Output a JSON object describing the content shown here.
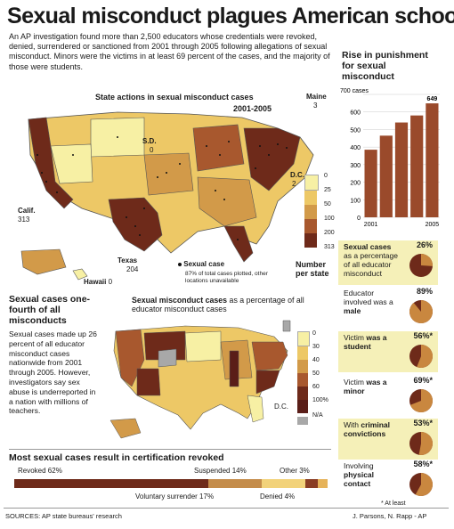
{
  "title": "Sexual misconduct plagues American schools",
  "intro": "An AP investigation found more than 2,500 educators whose credentials were revoked, denied, surrendered or sanctioned from 2001 through 2005 following allegations of sexual misconduct. Minors were the victims in at least 69 percent of the cases, and the majority of those were students.",
  "map1": {
    "title": "State actions in sexual misconduct cases",
    "years": "2001-2005",
    "labels": {
      "maine": "Maine",
      "maine_val": "3",
      "sd": "S.D.",
      "sd_val": "0",
      "dc": "D.C.",
      "dc_val": "2",
      "calif": "Calif.",
      "calif_val": "313",
      "texas": "Texas",
      "texas_val": "204",
      "hawaii": "Hawaii",
      "hawaii_val": "0"
    },
    "dot_label": "Sexual case",
    "dot_note": "87% of total cases plotted, other locations unavailable",
    "legend_ticks": [
      "0",
      "25",
      "50",
      "100",
      "200",
      "313"
    ],
    "legend_title": "Number per state",
    "colors": [
      "#f7f0a4",
      "#edc866",
      "#d29a49",
      "#a8582e",
      "#6e2a1a"
    ]
  },
  "bar_chart": {
    "title": "Rise in punishment for sexual misconduct",
    "chart_data": {
      "type": "bar",
      "categories": [
        "2001",
        "2002",
        "2003",
        "2004",
        "2005"
      ],
      "values": [
        385,
        465,
        540,
        580,
        649
      ],
      "ylabel": "cases",
      "ylim": [
        0,
        700
      ],
      "yticks": [
        "700 cases",
        "600",
        "500",
        "400",
        "300",
        "200",
        "100",
        "0"
      ],
      "xtick_labels": [
        "2001",
        "",
        "",
        "",
        "2005"
      ],
      "data_label": "649"
    }
  },
  "pies": [
    {
      "text": "Sexual cases as a percentage of all educator misconduct",
      "bold_parts": "Sexual cases",
      "pct": "26%",
      "value": 26
    },
    {
      "text": "Educator involved was a male",
      "bold_parts": "male",
      "pct": "89%",
      "value": 89
    },
    {
      "text": "Victim was a student",
      "bold_parts": "was a student",
      "pct": "56%*",
      "value": 56
    },
    {
      "text": "Victim was a minor",
      "bold_parts": "was a minor",
      "pct": "69%*",
      "value": 69
    },
    {
      "text": "With criminal convictions",
      "bold_parts": "criminal convictions",
      "pct": "53%*",
      "value": 53
    },
    {
      "text": "Involving physical contact",
      "bold_parts": "physical contact",
      "pct": "58%*",
      "value": 58
    }
  ],
  "at_least_note": "* At least",
  "side": {
    "head": "Sexual cases one-fourth of all misconducts",
    "body": "Sexual cases made up 26 percent of all educator misconduct cases nationwide from 2001 through 2005. However, investigators say sex abuse is underreported in a nation with millions of teachers."
  },
  "map2": {
    "title_bold": "Sexual misconduct cases",
    "title_rest": "as a percentage of all educator misconduct cases",
    "dc": "D.C.",
    "legend_ticks": [
      "0",
      "30",
      "40",
      "50",
      "60",
      "100%",
      "N/A"
    ],
    "colors": [
      "#f7f0a4",
      "#edc866",
      "#d29a49",
      "#a8582e",
      "#6e2a1a",
      "#5a1e18",
      "#a8a8a8"
    ]
  },
  "revoked": {
    "title": "Most sexual cases result in certification revoked",
    "chart_data": {
      "type": "bar",
      "series": [
        {
          "name": "Revoked",
          "value": 62
        },
        {
          "name": "Voluntary surrender",
          "value": 17
        },
        {
          "name": "Suspended",
          "value": 14
        },
        {
          "name": "Denied",
          "value": 4
        },
        {
          "name": "Other",
          "value": 3
        }
      ]
    },
    "labels": {
      "revoked": "Revoked 62%",
      "voluntary": "Voluntary surrender 17%",
      "suspended": "Suspended 14%",
      "denied": "Denied 4%",
      "other": "Other 3%"
    },
    "colors": [
      "#6e2a1a",
      "#c48c4a",
      "#f2d27a",
      "#8a3c23",
      "#e6b35a"
    ]
  },
  "footer": {
    "sources": "SOURCES: AP state bureaus' research",
    "credit": "J. Parsons, N. Rapp - AP"
  }
}
